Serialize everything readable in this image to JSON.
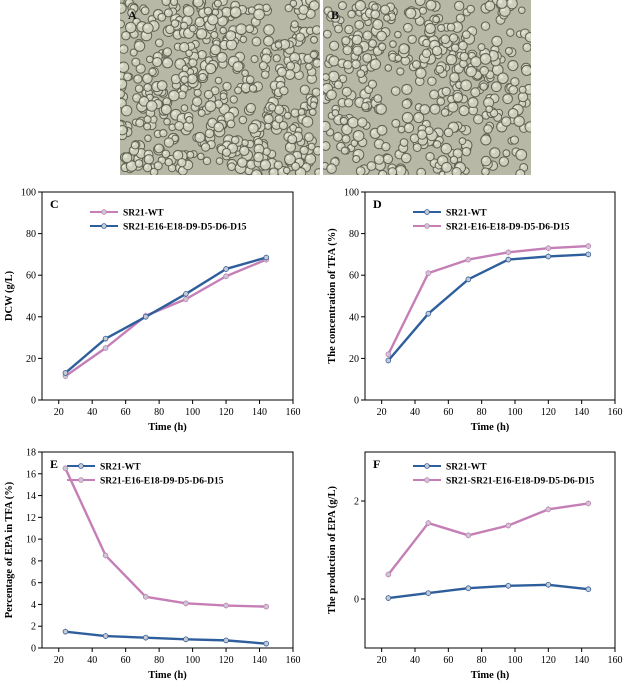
{
  "panels": {
    "micro": [
      {
        "label": "A"
      },
      {
        "label": "B"
      }
    ]
  },
  "chart_data": [
    {
      "type": "line",
      "panel_label": "C",
      "xlabel": "Time (h)",
      "ylabel": "DCW (g/L)",
      "xlim": [
        10,
        160
      ],
      "ylim": [
        0,
        100
      ],
      "xticks": [
        20,
        40,
        60,
        80,
        100,
        120,
        140,
        160
      ],
      "yticks": [
        0,
        20,
        40,
        60,
        80,
        100
      ],
      "legend_position": "top-left",
      "series": [
        {
          "name": "SR21-WT",
          "color": "#c57fb6",
          "x": [
            24,
            48,
            72,
            96,
            120,
            144
          ],
          "y": [
            11.5,
            25,
            40.5,
            48.5,
            59.5,
            67.5
          ]
        },
        {
          "name": "SR21-E16-E18-D9-D5-D6-D15",
          "color": "#2e5f9c",
          "x": [
            24,
            48,
            72,
            96,
            120,
            144
          ],
          "y": [
            13,
            29.5,
            40,
            51,
            63,
            68.5
          ]
        }
      ]
    },
    {
      "type": "line",
      "panel_label": "D",
      "xlabel": "Time (h)",
      "ylabel": "The concentration of TFA (%)",
      "xlim": [
        10,
        160
      ],
      "ylim": [
        0,
        100
      ],
      "xticks": [
        20,
        40,
        60,
        80,
        100,
        120,
        140,
        160
      ],
      "yticks": [
        0,
        20,
        40,
        60,
        80,
        100
      ],
      "legend_position": "top-left",
      "series": [
        {
          "name": "SR21-WT",
          "color": "#2e5f9c",
          "x": [
            24,
            48,
            72,
            96,
            120,
            144
          ],
          "y": [
            19,
            41.5,
            58,
            67.5,
            69,
            70
          ]
        },
        {
          "name": "SR21-E16-E18-D9-D5-D6-D15",
          "color": "#c57fb6",
          "x": [
            24,
            48,
            72,
            96,
            120,
            144
          ],
          "y": [
            22,
            61,
            67.5,
            71,
            73,
            74
          ]
        }
      ]
    },
    {
      "type": "line",
      "panel_label": "E",
      "xlabel": "Time (h)",
      "ylabel": "Percentage of EPA in TFA (%)",
      "xlim": [
        10,
        160
      ],
      "ylim": [
        0,
        18
      ],
      "xticks": [
        20,
        40,
        60,
        80,
        100,
        120,
        140,
        160
      ],
      "yticks": [
        0,
        2,
        4,
        6,
        8,
        10,
        12,
        14,
        16,
        18
      ],
      "legend_position": "top-left",
      "series": [
        {
          "name": "SR21-WT",
          "color": "#2e5f9c",
          "x": [
            24,
            48,
            72,
            96,
            120,
            144
          ],
          "y": [
            1.5,
            1.1,
            0.95,
            0.8,
            0.7,
            0.4
          ]
        },
        {
          "name": "SR21-E16-E18-D9-D5-D6-D15",
          "color": "#c57fb6",
          "x": [
            24,
            48,
            72,
            96,
            120,
            144
          ],
          "y": [
            16.5,
            8.5,
            4.7,
            4.1,
            3.9,
            3.8
          ]
        }
      ]
    },
    {
      "type": "line",
      "panel_label": "F",
      "xlabel": "Time (h)",
      "ylabel": "The production of EPA (g/L)",
      "xlim": [
        10,
        160
      ],
      "ylim": [
        -1,
        3
      ],
      "xticks": [
        20,
        40,
        60,
        80,
        100,
        120,
        140,
        160
      ],
      "yticks": [
        0,
        2
      ],
      "legend_position": "top-left",
      "series": [
        {
          "name": "SR21-WT",
          "color": "#2e5f9c",
          "x": [
            24,
            48,
            72,
            96,
            120,
            144
          ],
          "y": [
            0.02,
            0.12,
            0.22,
            0.27,
            0.29,
            0.2
          ]
        },
        {
          "name": "SR21-SR21-E16-E18-D9-D5-D6-D15",
          "color": "#c57fb6",
          "x": [
            24,
            48,
            72,
            96,
            120,
            144
          ],
          "y": [
            0.5,
            1.55,
            1.3,
            1.5,
            1.83,
            1.95
          ]
        }
      ]
    }
  ]
}
